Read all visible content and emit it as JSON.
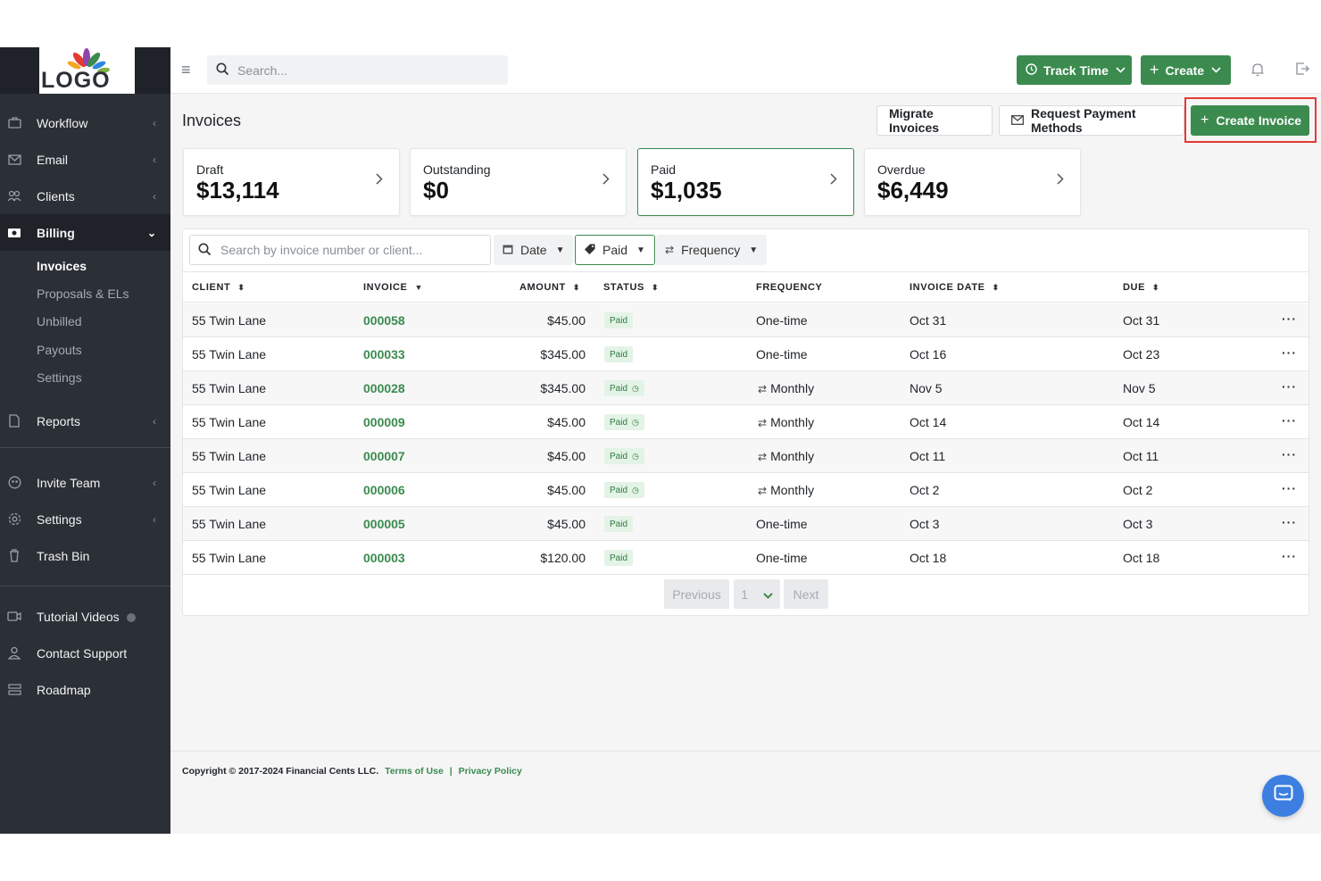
{
  "brand": {
    "logo_text": "LOGO"
  },
  "topbar": {
    "search_placeholder": "Search...",
    "track_time_label": "Track Time",
    "create_label": "Create"
  },
  "sidebar": {
    "items": [
      {
        "label": "Workflow"
      },
      {
        "label": "Email"
      },
      {
        "label": "Clients"
      },
      {
        "label": "Billing"
      },
      {
        "label": "Reports"
      },
      {
        "label": "Invite Team"
      },
      {
        "label": "Settings"
      },
      {
        "label": "Trash Bin"
      },
      {
        "label": "Tutorial Videos"
      },
      {
        "label": "Contact Support"
      },
      {
        "label": "Roadmap"
      }
    ],
    "billing_sub": [
      {
        "label": "Invoices"
      },
      {
        "label": "Proposals & ELs"
      },
      {
        "label": "Unbilled"
      },
      {
        "label": "Payouts"
      },
      {
        "label": "Settings"
      }
    ]
  },
  "page": {
    "title": "Invoices",
    "migrate_label": "Migrate Invoices",
    "request_payment_label": "Request Payment Methods",
    "create_invoice_label": "Create Invoice"
  },
  "stats": [
    {
      "label": "Draft",
      "value": "$13,114"
    },
    {
      "label": "Outstanding",
      "value": "$0"
    },
    {
      "label": "Paid",
      "value": "$1,035"
    },
    {
      "label": "Overdue",
      "value": "$6,449"
    }
  ],
  "filters": {
    "search_placeholder": "Search by invoice number or client...",
    "date_label": "Date",
    "status_label": "Paid",
    "frequency_label": "Frequency"
  },
  "table": {
    "columns": [
      "CLIENT",
      "INVOICE",
      "AMOUNT",
      "STATUS",
      "FREQUENCY",
      "INVOICE DATE",
      "DUE"
    ],
    "rows": [
      {
        "client": "55 Twin Lane",
        "invoice": "000058",
        "amount": "$45.00",
        "status": "Paid",
        "frequency": "One-time",
        "invoice_date": "Oct 31",
        "due": "Oct 31"
      },
      {
        "client": "55 Twin Lane",
        "invoice": "000033",
        "amount": "$345.00",
        "status": "Paid",
        "frequency": "One-time",
        "invoice_date": "Oct 16",
        "due": "Oct 23"
      },
      {
        "client": "55 Twin Lane",
        "invoice": "000028",
        "amount": "$345.00",
        "status": "Paid",
        "frequency": "Monthly",
        "invoice_date": "Nov 5",
        "due": "Nov 5"
      },
      {
        "client": "55 Twin Lane",
        "invoice": "000009",
        "amount": "$45.00",
        "status": "Paid",
        "frequency": "Monthly",
        "invoice_date": "Oct 14",
        "due": "Oct 14"
      },
      {
        "client": "55 Twin Lane",
        "invoice": "000007",
        "amount": "$45.00",
        "status": "Paid",
        "frequency": "Monthly",
        "invoice_date": "Oct 11",
        "due": "Oct 11"
      },
      {
        "client": "55 Twin Lane",
        "invoice": "000006",
        "amount": "$45.00",
        "status": "Paid",
        "frequency": "Monthly",
        "invoice_date": "Oct 2",
        "due": "Oct 2"
      },
      {
        "client": "55 Twin Lane",
        "invoice": "000005",
        "amount": "$45.00",
        "status": "Paid",
        "frequency": "One-time",
        "invoice_date": "Oct 3",
        "due": "Oct 3"
      },
      {
        "client": "55 Twin Lane",
        "invoice": "000003",
        "amount": "$120.00",
        "status": "Paid",
        "frequency": "One-time",
        "invoice_date": "Oct 18",
        "due": "Oct 18"
      }
    ]
  },
  "pagination": {
    "previous_label": "Previous",
    "page": "1",
    "next_label": "Next"
  },
  "footer": {
    "copyright": "Copyright © 2017-2024 Financial Cents LLC.",
    "terms_label": "Terms of Use",
    "separator": "|",
    "privacy_label": "Privacy Policy"
  },
  "colors": {
    "accent": "#3b8b4f",
    "sidebar_bg": "#2b2f36",
    "highlight": "#e53935",
    "chat": "#3d7fe0"
  }
}
